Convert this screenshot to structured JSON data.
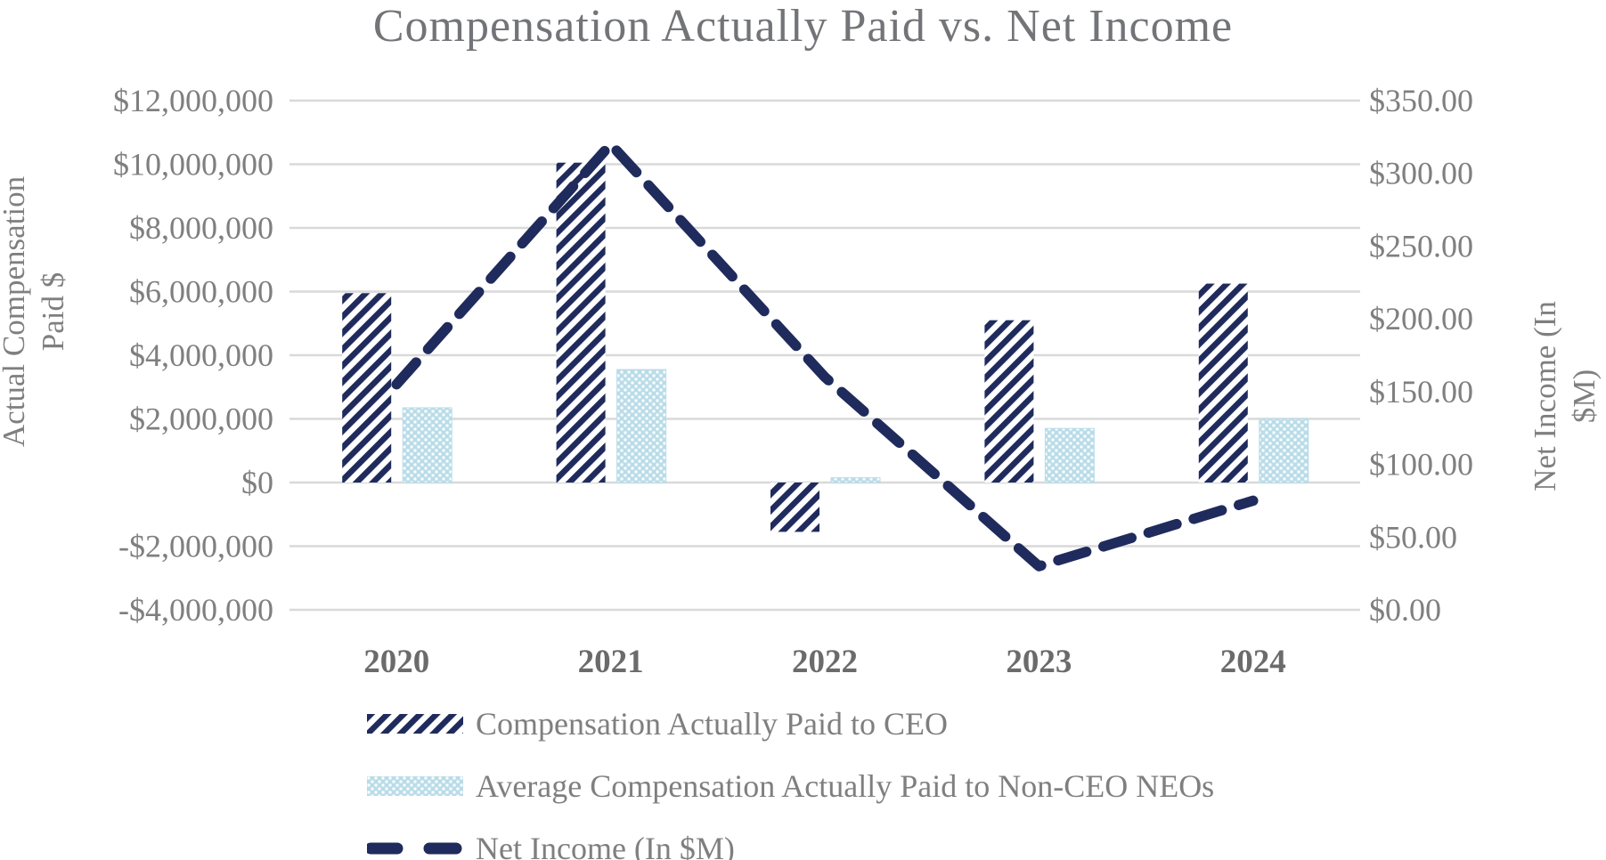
{
  "title": "Compensation Actually Paid vs. Net Income",
  "chart_data": {
    "type": "combo-bar-line",
    "categories": [
      "2020",
      "2021",
      "2022",
      "2023",
      "2024"
    ],
    "series": [
      {
        "name": "Compensation Actually Paid to CEO",
        "type": "bar",
        "axis": "left",
        "pattern": "diagonal-hatch",
        "color": "#1f2b5c",
        "values": [
          5950000,
          10050000,
          -1550000,
          5100000,
          6250000
        ]
      },
      {
        "name": "Average Compensation Actually Paid to Non-CEO NEOs",
        "type": "bar",
        "axis": "left",
        "pattern": "dots",
        "color": "#b9dce8",
        "values": [
          2350000,
          3550000,
          150000,
          1700000,
          2000000
        ]
      },
      {
        "name": "Net Income (In $M)",
        "type": "line",
        "axis": "right",
        "style": "dashed",
        "color": "#1f2b5c",
        "values": [
          155,
          320,
          160,
          30,
          75
        ]
      }
    ],
    "left_axis": {
      "label": "Actual Compensation Paid $",
      "min": -4000000,
      "max": 12000000,
      "step": 2000000,
      "tick_labels": [
        "$12,000,000",
        "$10,000,000",
        "$8,000,000",
        "$6,000,000",
        "$4,000,000",
        "$2,000,000",
        "$0",
        "-$2,000,000",
        "-$4,000,000"
      ]
    },
    "right_axis": {
      "label": "Net Income (In $M)",
      "min": 0,
      "max": 350,
      "step": 50,
      "tick_labels": [
        "$350.00",
        "$300.00",
        "$250.00",
        "$200.00",
        "$150.00",
        "$100.00",
        "$50.00",
        "$0.00"
      ]
    },
    "grid": true,
    "legend_position": "bottom"
  },
  "legend": {
    "items": [
      {
        "label": "Compensation Actually Paid to CEO",
        "swatch": "hatch"
      },
      {
        "label": "Average Compensation Actually Paid to Non-CEO NEOs",
        "swatch": "dots"
      },
      {
        "label": "Net Income (In $M)",
        "swatch": "dash"
      }
    ]
  },
  "colors": {
    "navy": "#1f2b5c",
    "light_blue": "#b9dce8",
    "gridline": "#d9d9d9",
    "text": "#7f7f7f"
  }
}
